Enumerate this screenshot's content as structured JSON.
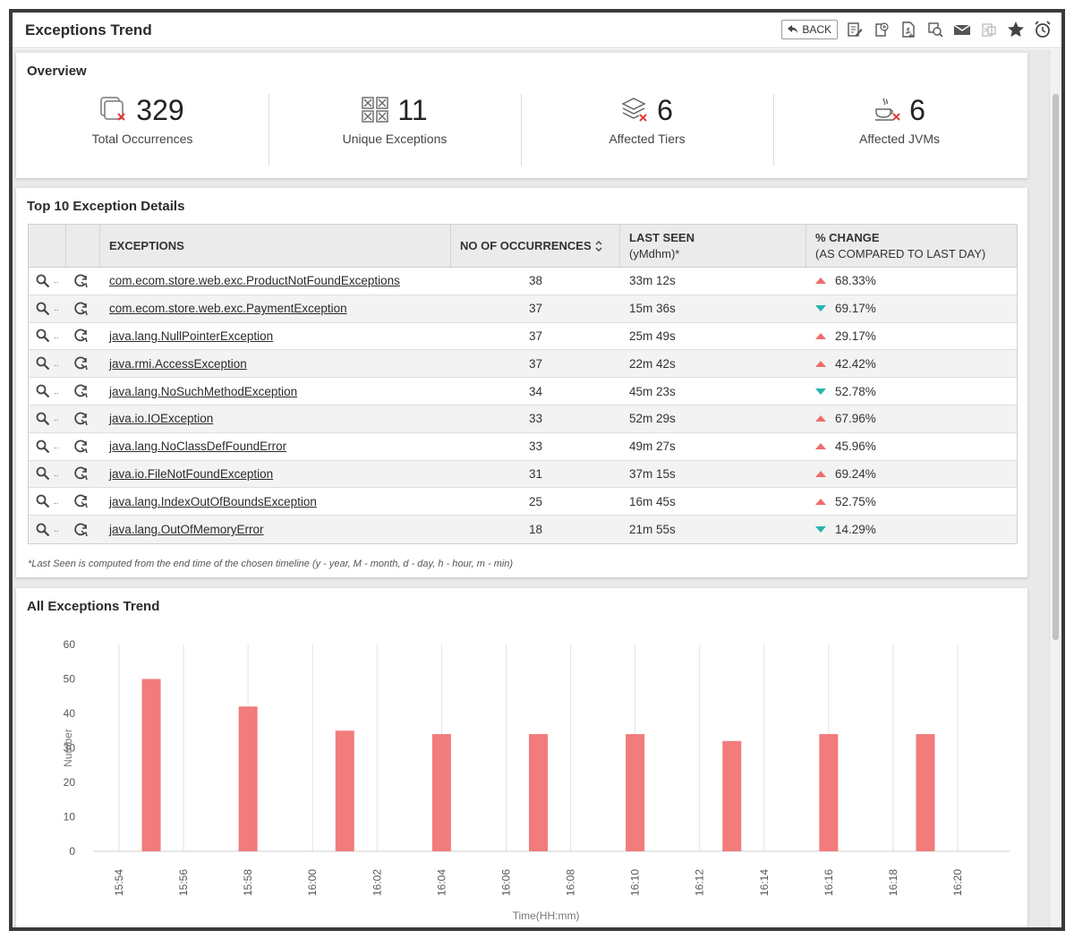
{
  "window": {
    "title": "Exceptions Trend",
    "back_label": "BACK"
  },
  "toolbar_icons": [
    "edit-report-icon",
    "export-icon",
    "pdf-icon",
    "search-doc-icon",
    "email-icon",
    "excel-icon",
    "favorite-star-icon",
    "alarm-clock-icon"
  ],
  "overview": {
    "title": "Overview",
    "kpis": [
      {
        "value": "329",
        "label": "Total Occurrences",
        "icon": "occurrences-icon"
      },
      {
        "value": "11",
        "label": "Unique Exceptions",
        "icon": "unique-exceptions-icon"
      },
      {
        "value": "6",
        "label": "Affected Tiers",
        "icon": "tiers-icon"
      },
      {
        "value": "6",
        "label": "Affected JVMs",
        "icon": "jvm-icon"
      }
    ]
  },
  "details": {
    "title": "Top 10 Exception Details",
    "columns": [
      "EXCEPTIONS",
      "NO OF OCCURRENCES",
      "LAST SEEN",
      "(yMdhm)*",
      "% CHANGE",
      "(AS COMPARED TO LAST DAY)"
    ],
    "rows": [
      {
        "name": "com.ecom.store.web.exc.ProductNotFoundExceptions",
        "count": "38",
        "last_seen": "33m 12s",
        "change": "68.33%",
        "dir": "up"
      },
      {
        "name": "com.ecom.store.web.exc.PaymentException",
        "count": "37",
        "last_seen": "15m 36s",
        "change": "69.17%",
        "dir": "down"
      },
      {
        "name": "java.lang.NullPointerException",
        "count": "37",
        "last_seen": "25m 49s",
        "change": "29.17%",
        "dir": "up"
      },
      {
        "name": "java.rmi.AccessException",
        "count": "37",
        "last_seen": "22m 42s",
        "change": "42.42%",
        "dir": "up"
      },
      {
        "name": "java.lang.NoSuchMethodException",
        "count": "34",
        "last_seen": "45m 23s",
        "change": "52.78%",
        "dir": "down"
      },
      {
        "name": "java.io.IOException",
        "count": "33",
        "last_seen": "52m 29s",
        "change": "67.96%",
        "dir": "up"
      },
      {
        "name": "java.lang.NoClassDefFoundError",
        "count": "33",
        "last_seen": "49m 27s",
        "change": "45.96%",
        "dir": "up"
      },
      {
        "name": "java.io.FileNotFoundException",
        "count": "31",
        "last_seen": "37m 15s",
        "change": "69.24%",
        "dir": "up"
      },
      {
        "name": "java.lang.IndexOutOfBoundsException",
        "count": "25",
        "last_seen": "16m 45s",
        "change": "52.75%",
        "dir": "up"
      },
      {
        "name": "java.lang.OutOfMemoryError",
        "count": "18",
        "last_seen": "21m 55s",
        "change": "14.29%",
        "dir": "down"
      }
    ],
    "footnote": "*Last Seen is computed from the end time of the chosen timeline (y - year, M - month, d - day, h - hour, m - min)"
  },
  "colors": {
    "up": "#ef6c6c",
    "down": "#26b5b0",
    "bar": "#f27b7b"
  },
  "chart_title": "All Exceptions Trend",
  "chart_data": {
    "type": "bar",
    "title": "All Exceptions Trend",
    "xlabel": "Time(HH:mm)",
    "ylabel": "Number",
    "ylim": [
      0,
      60
    ],
    "yticks": [
      0,
      10,
      20,
      30,
      40,
      50,
      60
    ],
    "xticks": [
      "15:54",
      "15:56",
      "15:58",
      "16:00",
      "16:02",
      "16:04",
      "16:06",
      "16:08",
      "16:10",
      "16:12",
      "16:14",
      "16:16",
      "16:18",
      "16:20"
    ],
    "points": [
      {
        "x": "15:55",
        "y": 50
      },
      {
        "x": "15:58",
        "y": 42
      },
      {
        "x": "16:01",
        "y": 35
      },
      {
        "x": "16:04",
        "y": 34
      },
      {
        "x": "16:07",
        "y": 34
      },
      {
        "x": "16:10",
        "y": 34
      },
      {
        "x": "16:13",
        "y": 32
      },
      {
        "x": "16:16",
        "y": 34
      },
      {
        "x": "16:19",
        "y": 34
      }
    ],
    "grid": "vertical"
  }
}
